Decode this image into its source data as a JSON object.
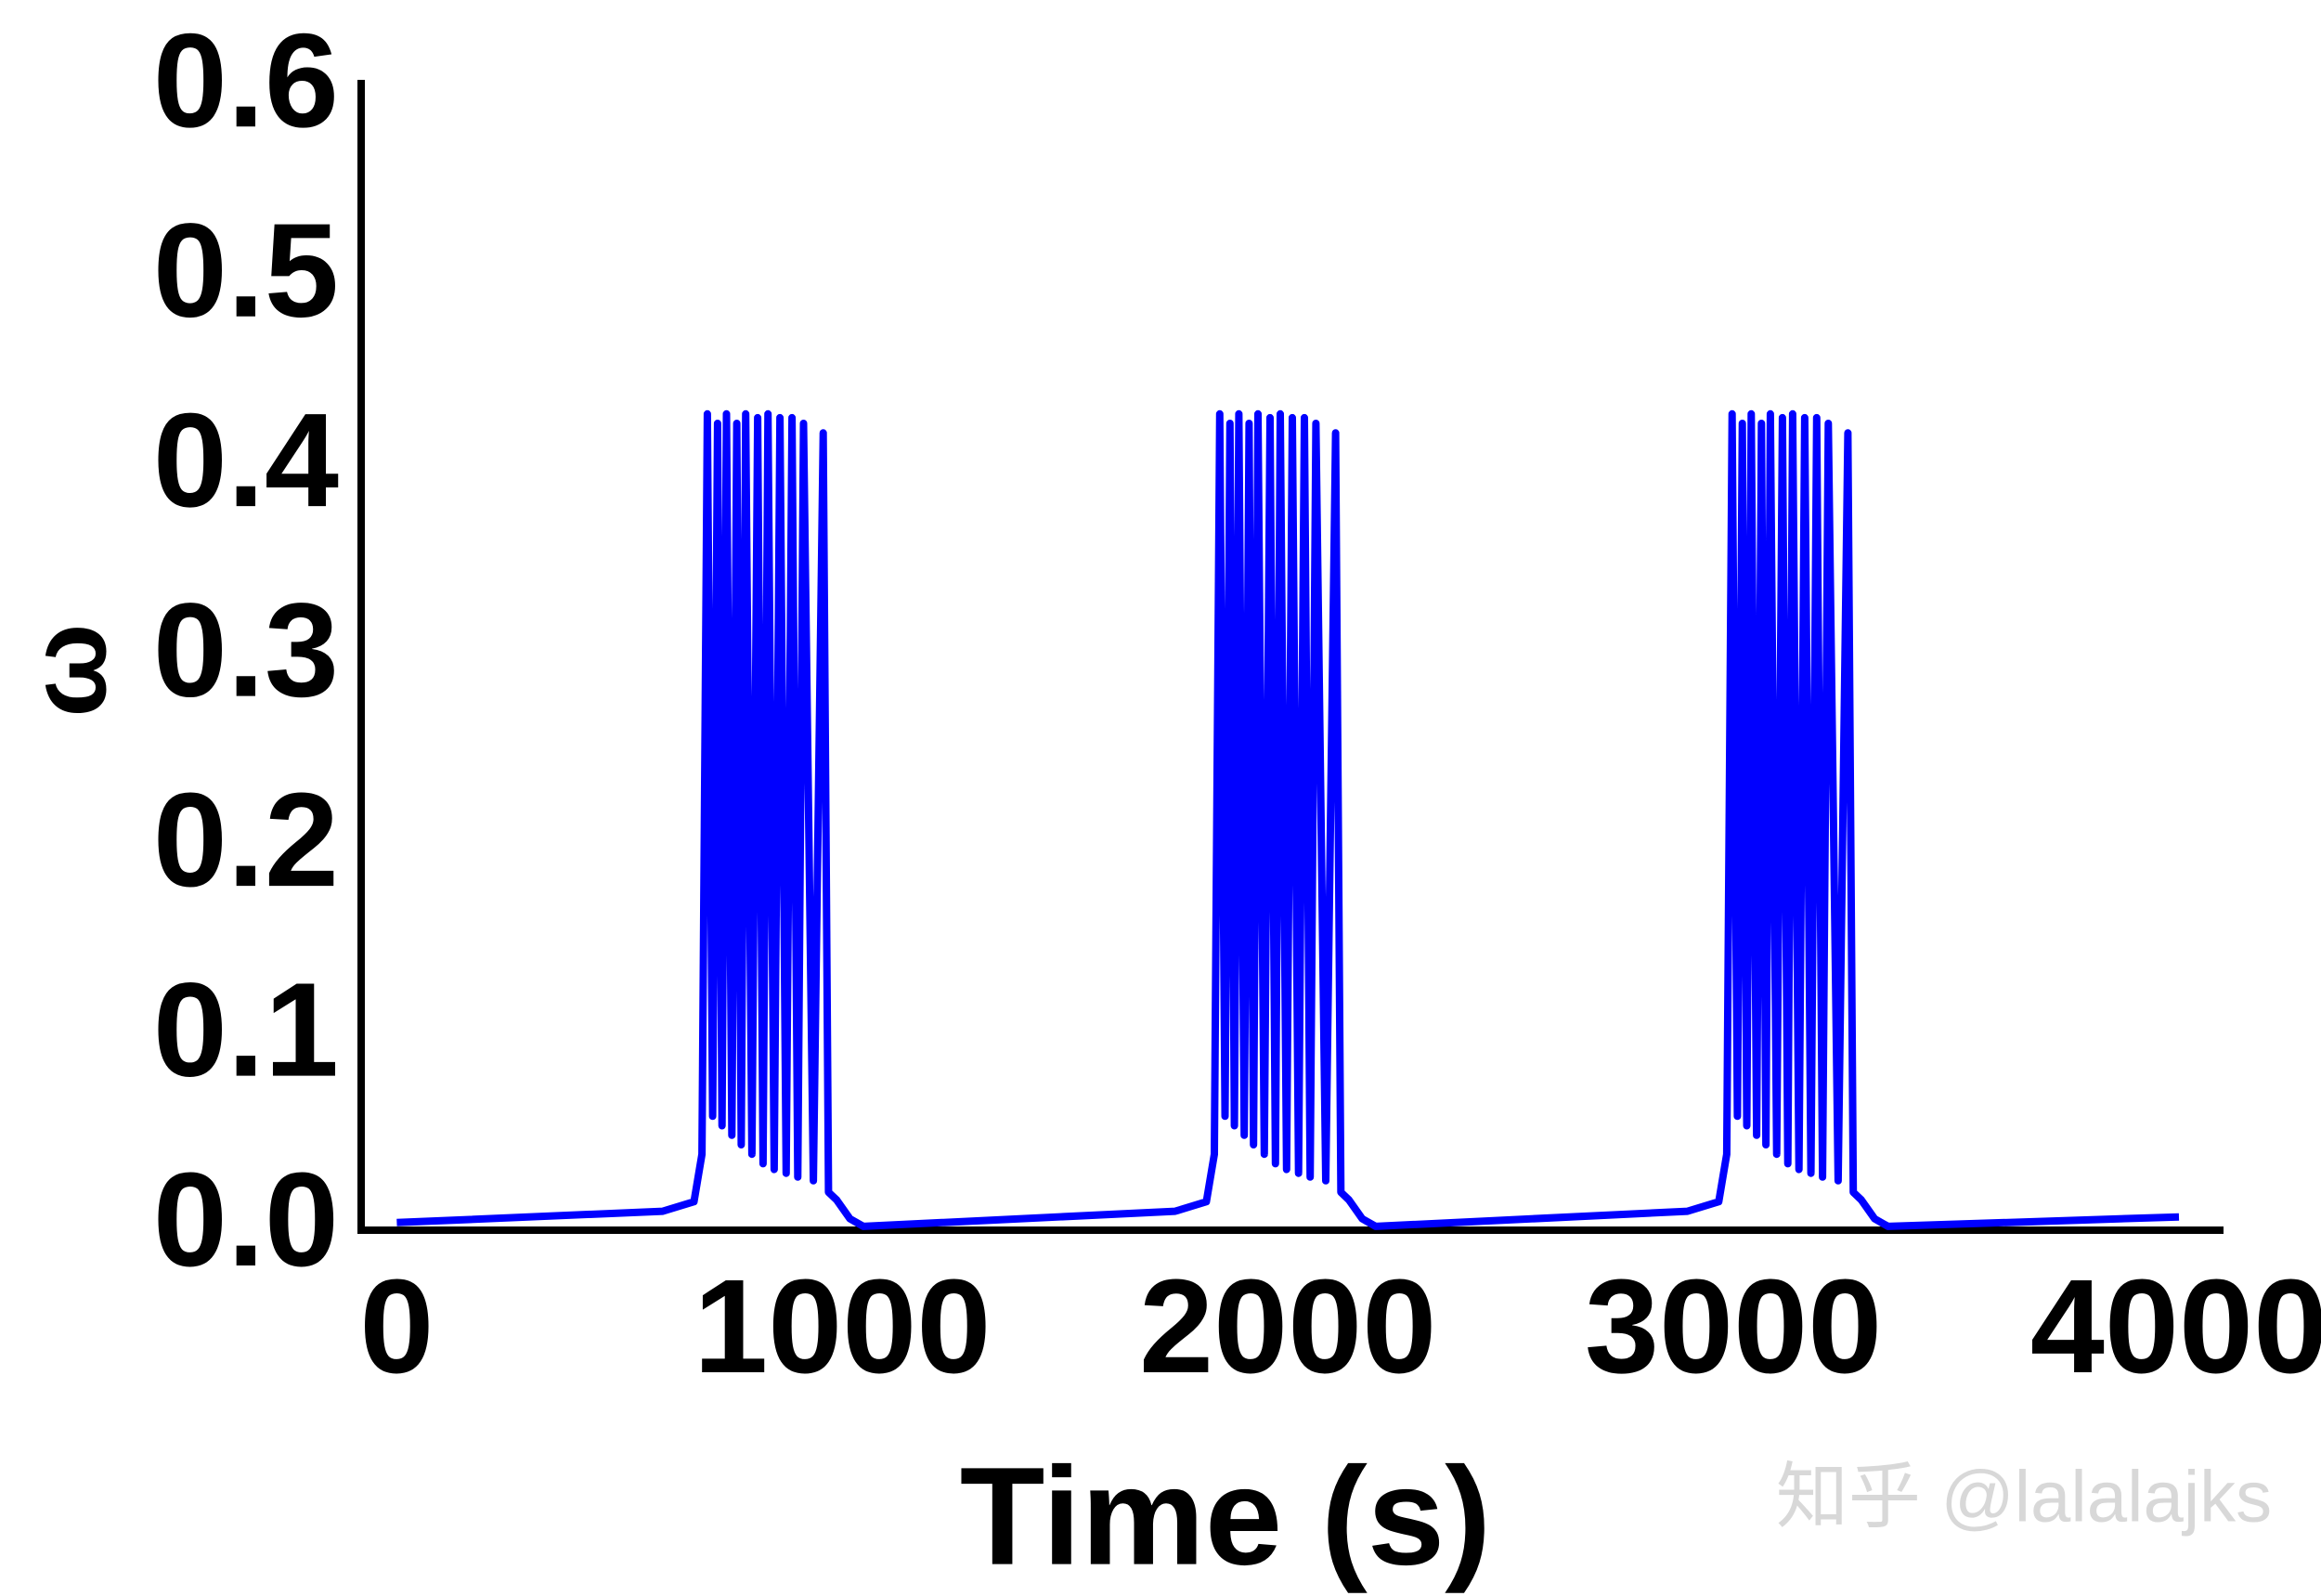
{
  "chart_data": {
    "type": "line",
    "xlabel": "Time (s)",
    "ylabel": "ω",
    "watermark": "知乎 @lalalajks",
    "color": "#0000ff",
    "grid": false,
    "xlim": [
      -80,
      4100
    ],
    "ylim": [
      0,
      0.605
    ],
    "xticks": [
      0,
      1000,
      2000,
      3000,
      4000
    ],
    "yticks": [
      {
        "value": 0,
        "label": "0.0"
      },
      0.1,
      0.2,
      0.3,
      0.4,
      0.5,
      0.6
    ],
    "x": [
      0,
      597,
      667,
      685,
      697,
      709,
      720,
      730,
      740,
      752,
      763,
      773,
      783,
      797,
      810,
      822,
      833,
      847,
      860,
      874,
      887,
      900,
      913,
      935,
      957,
      969,
      987,
      1017,
      1047,
      1747,
      1817,
      1835,
      1847,
      1859,
      1870,
      1880,
      1890,
      1902,
      1913,
      1923,
      1933,
      1947,
      1960,
      1972,
      1983,
      1997,
      2010,
      2024,
      2037,
      2050,
      2063,
      2085,
      2107,
      2119,
      2137,
      2167,
      2197,
      2897,
      2967,
      2985,
      2997,
      3009,
      3020,
      3030,
      3040,
      3052,
      3063,
      3073,
      3083,
      3097,
      3110,
      3122,
      3133,
      3147,
      3160,
      3174,
      3187,
      3200,
      3213,
      3235,
      3257,
      3269,
      3287,
      3317,
      3347,
      4000
    ],
    "values": [
      0.004,
      0.01,
      0.015,
      0.04,
      0.43,
      0.06,
      0.425,
      0.055,
      0.43,
      0.05,
      0.425,
      0.045,
      0.43,
      0.04,
      0.428,
      0.035,
      0.43,
      0.032,
      0.428,
      0.03,
      0.428,
      0.028,
      0.425,
      0.026,
      0.42,
      0.02,
      0.016,
      0.006,
      0.002,
      0.01,
      0.015,
      0.04,
      0.43,
      0.06,
      0.425,
      0.055,
      0.43,
      0.05,
      0.425,
      0.045,
      0.43,
      0.04,
      0.428,
      0.035,
      0.43,
      0.032,
      0.428,
      0.03,
      0.428,
      0.028,
      0.425,
      0.026,
      0.42,
      0.02,
      0.016,
      0.006,
      0.002,
      0.01,
      0.015,
      0.04,
      0.43,
      0.06,
      0.425,
      0.055,
      0.43,
      0.05,
      0.425,
      0.045,
      0.43,
      0.04,
      0.428,
      0.035,
      0.43,
      0.032,
      0.428,
      0.03,
      0.428,
      0.028,
      0.425,
      0.026,
      0.42,
      0.02,
      0.016,
      0.006,
      0.002,
      0.007
    ]
  }
}
